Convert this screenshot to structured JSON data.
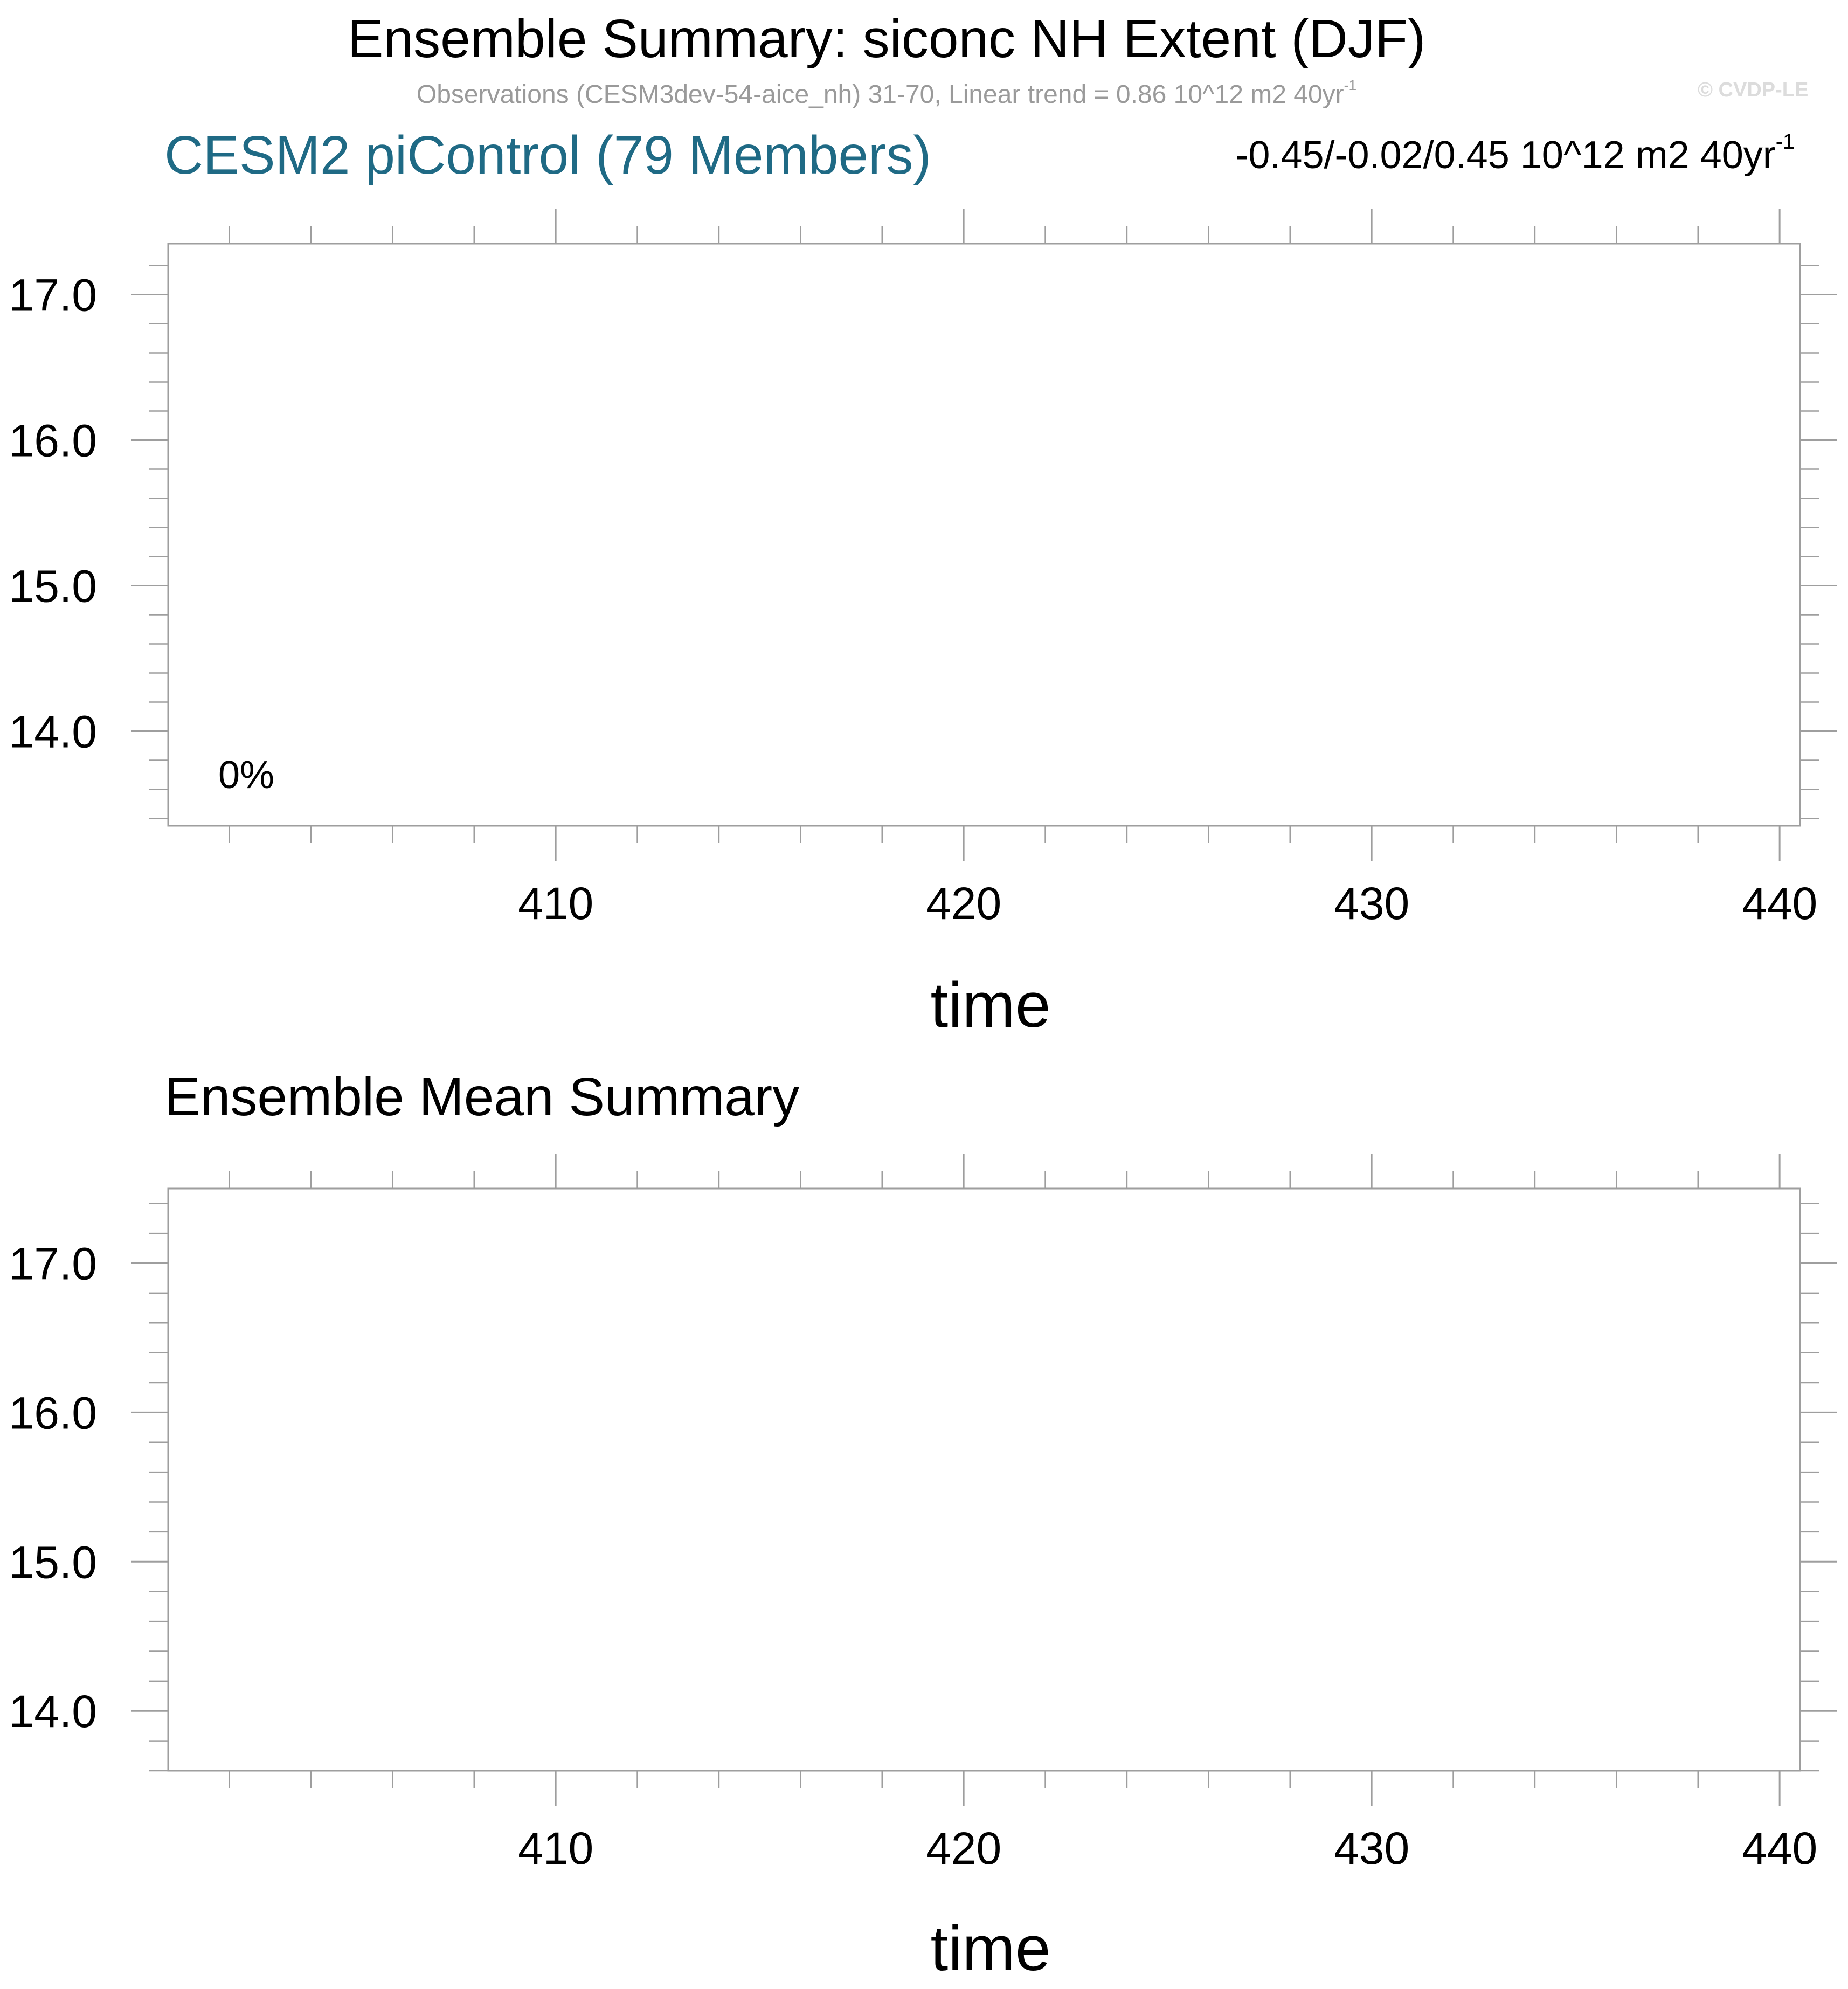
{
  "figure": {
    "title": "Ensemble Summary: siconc NH Extent (DJF)",
    "subtitle_main": "Observations (CESM3dev-54-aice_nh) 31-70, Linear trend = 0.86 10^12 m2 40yr",
    "subtitle_exp": "-1",
    "copyright": "© CVDP-LE",
    "ensemble_label": "CESM2 piControl (79 Members)",
    "trend_range_main": "-0.45/-0.02/0.45 10^12 m2 40yr",
    "trend_range_exp": "-1",
    "mean_title": "Ensemble Mean Summary"
  },
  "chart_data": [
    {
      "type": "line",
      "title": "CESM2 piControl (79 Members)",
      "xlabel": "time",
      "ylabel": "",
      "xlim": [
        400.5,
        440.5
      ],
      "ylim": [
        13.35,
        17.35
      ],
      "x_ticks": [
        410,
        420,
        430,
        440
      ],
      "x_tick_labels": [
        "410",
        "420",
        "430",
        "440"
      ],
      "y_ticks": [
        14.0,
        15.0,
        16.0,
        17.0
      ],
      "y_tick_labels": [
        "14.0",
        "15.0",
        "16.0",
        "17.0"
      ],
      "annotation": "0%",
      "series": [],
      "grid": false
    },
    {
      "type": "line",
      "title": "Ensemble Mean Summary",
      "xlabel": "time",
      "ylabel": "",
      "xlim": [
        400.5,
        440.5
      ],
      "ylim": [
        13.6,
        17.5
      ],
      "x_ticks": [
        410,
        420,
        430,
        440
      ],
      "x_tick_labels": [
        "410",
        "420",
        "430",
        "440"
      ],
      "y_ticks": [
        14.0,
        15.0,
        16.0,
        17.0
      ],
      "y_tick_labels": [
        "14.0",
        "15.0",
        "16.0",
        "17.0"
      ],
      "series": [],
      "grid": false
    }
  ]
}
